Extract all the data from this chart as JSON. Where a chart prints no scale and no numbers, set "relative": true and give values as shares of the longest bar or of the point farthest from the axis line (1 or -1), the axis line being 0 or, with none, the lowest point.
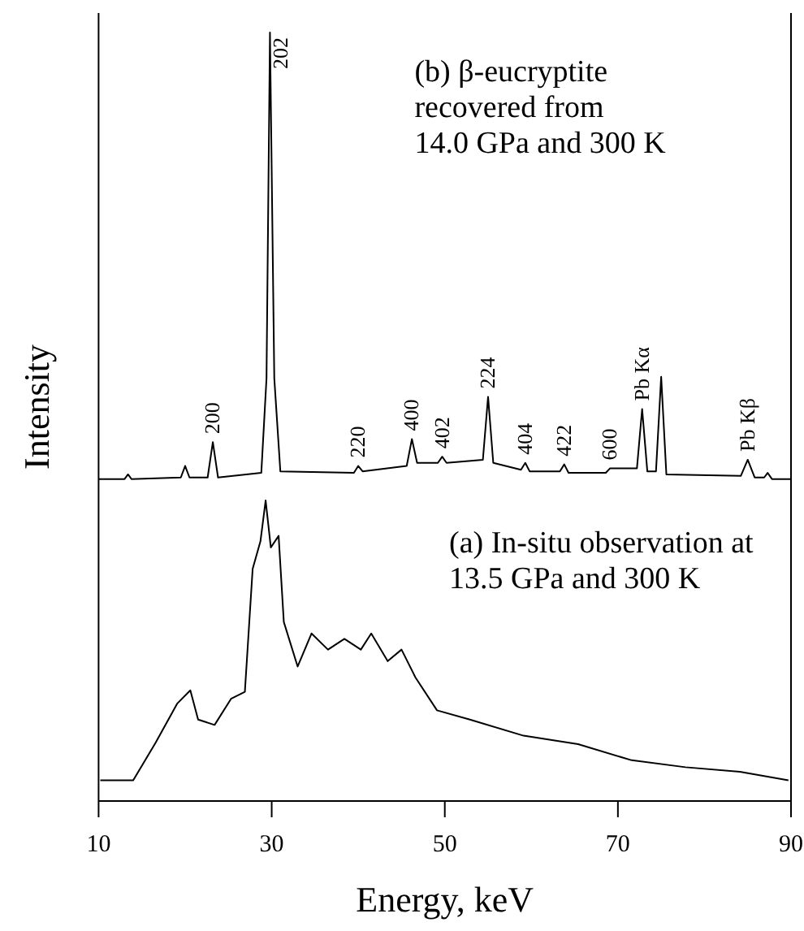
{
  "chart_data": {
    "type": "line",
    "relative": true,
    "xlabel": "Energy, keV",
    "ylabel": "Intensity",
    "xlim": [
      10,
      90
    ],
    "xticks": [
      10,
      30,
      50,
      70,
      90
    ],
    "grid": false,
    "marker": "none",
    "line_style": "solid",
    "series": [
      {
        "color": "#000000",
        "x": [
          10,
          13.0,
          13.4,
          13.8,
          19.5,
          20.0,
          20.5,
          22.6,
          23.2,
          23.8,
          28.8,
          29.4,
          29.8,
          30.3,
          31.0,
          39.5,
          40.0,
          40.5,
          45.6,
          46.2,
          46.8,
          49.2,
          49.7,
          50.2,
          54.4,
          55.0,
          55.6,
          58.8,
          59.3,
          59.8,
          63.3,
          63.8,
          64.3,
          68.6,
          69.1,
          72.2,
          72.8,
          73.4,
          74.4,
          75.0,
          75.6,
          84.2,
          85.0,
          85.8,
          86.9,
          87.3,
          87.8,
          90
        ],
        "values": [
          0.419,
          0.419,
          0.425,
          0.419,
          0.421,
          0.436,
          0.421,
          0.421,
          0.467,
          0.421,
          0.427,
          0.55,
          1,
          0.55,
          0.429,
          0.427,
          0.436,
          0.429,
          0.436,
          0.471,
          0.44,
          0.44,
          0.448,
          0.44,
          0.444,
          0.526,
          0.44,
          0.431,
          0.44,
          0.429,
          0.429,
          0.438,
          0.427,
          0.427,
          0.433,
          0.433,
          0.51,
          0.429,
          0.429,
          0.552,
          0.425,
          0.423,
          0.444,
          0.421,
          0.421,
          0.427,
          0.419,
          0.419
        ]
      },
      {
        "color": "#000000",
        "x": [
          10.2,
          14.0,
          16.6,
          19.1,
          20.6,
          21.5,
          23.4,
          25.3,
          26.9,
          27.8,
          28.7,
          29.3,
          29.9,
          30.8,
          31.4,
          33.0,
          34.6,
          36.5,
          38.4,
          40.3,
          41.5,
          43.4,
          45.0,
          46.6,
          49.1,
          52.9,
          59.1,
          65.4,
          71.6,
          77.8,
          84.1,
          89.7
        ],
        "values": [
          0.027,
          0.027,
          0.076,
          0.127,
          0.144,
          0.106,
          0.099,
          0.133,
          0.142,
          0.302,
          0.338,
          0.391,
          0.33,
          0.345,
          0.233,
          0.175,
          0.218,
          0.197,
          0.211,
          0.197,
          0.218,
          0.182,
          0.197,
          0.161,
          0.118,
          0.106,
          0.085,
          0.074,
          0.053,
          0.044,
          0.038,
          0.027
        ]
      }
    ],
    "annotations": [
      {
        "text": "200",
        "x": 23.2,
        "y": 0.467
      },
      {
        "text": "202",
        "x": 29.8,
        "y": 1
      },
      {
        "text": "220",
        "x": 40.0,
        "y": 0.436
      },
      {
        "text": "400",
        "x": 46.2,
        "y": 0.471
      },
      {
        "text": "402",
        "x": 49.7,
        "y": 0.448
      },
      {
        "text": "224",
        "x": 55.0,
        "y": 0.526
      },
      {
        "text": "404",
        "x": 59.3,
        "y": 0.44
      },
      {
        "text": "422",
        "x": 63.8,
        "y": 0.438
      },
      {
        "text": "600",
        "x": 69.1,
        "y": 0.433
      },
      {
        "text": "Pb Kα",
        "x": 72.8,
        "y": 0.51
      },
      {
        "text": "Pb Kβ",
        "x": 85.0,
        "y": 0.444
      },
      "(b) β-eucryptite\nrecovered from\n14.0 GPa and 300 K",
      "(a) In-situ observation at\n13.5 GPa and 300 K"
    ]
  }
}
